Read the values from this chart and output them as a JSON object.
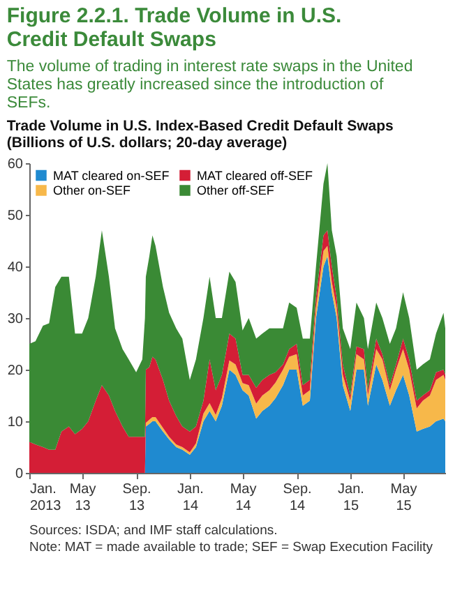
{
  "chart_data": {
    "type": "area",
    "stacked": true,
    "title": "Figure 2.2.1. Trade Volume in U.S. Credit Default Swaps",
    "subtitle": "The volume of trading in interest rate swaps in the United States has greatly increased since the introduction of SEFs.",
    "annotations": [
      "Trade Volume in U.S. Index-Based Credit Default Swaps",
      "Sources: ISDA; and IMF staff calculations.",
      "Note: MAT = made available to trade; SEF = Swap Execution Facility"
    ],
    "ylabel": "(Billions of U.S. dollars; 20-day average)",
    "x": [
      "2013-01-01",
      "2013-01-15",
      "2013-02-01",
      "2013-02-15",
      "2013-03-01",
      "2013-03-15",
      "2013-04-01",
      "2013-04-15",
      "2013-05-01",
      "2013-05-15",
      "2013-06-01",
      "2013-06-15",
      "2013-07-01",
      "2013-07-15",
      "2013-08-01",
      "2013-08-15",
      "2013-09-01",
      "2013-09-15",
      "2013-09-21",
      "2013-09-23",
      "2013-10-01",
      "2013-10-08",
      "2013-10-15",
      "2013-11-01",
      "2013-11-15",
      "2013-12-01",
      "2013-12-15",
      "2014-01-01",
      "2014-01-15",
      "2014-02-01",
      "2014-02-15",
      "2014-03-01",
      "2014-03-15",
      "2014-04-01",
      "2014-04-15",
      "2014-05-01",
      "2014-05-15",
      "2014-06-01",
      "2014-06-15",
      "2014-07-01",
      "2014-07-15",
      "2014-08-01",
      "2014-08-15",
      "2014-09-01",
      "2014-09-15",
      "2014-10-01",
      "2014-10-15",
      "2014-11-01",
      "2014-11-10",
      "2014-11-20",
      "2014-12-01",
      "2014-12-15",
      "2015-01-01",
      "2015-01-15",
      "2015-02-01",
      "2015-02-10",
      "2015-03-01",
      "2015-03-15",
      "2015-04-01",
      "2015-04-15",
      "2015-05-01",
      "2015-05-15",
      "2015-06-01",
      "2015-06-15",
      "2015-07-01",
      "2015-07-15",
      "2015-08-01",
      "2015-08-05"
    ],
    "series": [
      {
        "name": "MAT cleared on-SEF",
        "color": "#1f8ad0",
        "values": [
          0,
          0,
          0,
          0,
          0,
          0,
          0,
          0,
          0,
          0,
          0,
          0,
          0,
          0,
          0,
          0,
          0,
          0,
          0,
          9,
          9.5,
          10,
          10,
          8,
          6.5,
          5,
          4.5,
          3.5,
          5,
          10,
          12,
          10,
          13,
          20,
          19,
          16,
          15,
          10.5,
          12,
          13,
          14.5,
          17,
          20,
          20,
          13,
          14,
          30,
          40,
          42,
          35,
          30,
          17,
          12,
          20,
          20,
          13,
          21,
          18,
          13,
          16,
          19,
          15,
          8,
          8.5,
          9,
          10,
          10.5,
          10
        ]
      },
      {
        "name": "Other on-SEF",
        "color": "#f7b84a",
        "values": [
          0,
          0,
          0,
          0,
          0,
          0,
          0,
          0,
          0,
          0,
          0,
          0,
          0,
          0,
          0,
          0,
          0,
          0,
          0,
          0.7,
          0.8,
          0.8,
          0.8,
          0.7,
          0.5,
          0.5,
          0.5,
          0.5,
          0.7,
          1.5,
          1.5,
          1.2,
          1.5,
          1.8,
          2,
          1.4,
          2,
          2.9,
          3,
          3,
          3,
          3,
          2.5,
          3,
          2,
          2,
          2,
          3,
          2,
          2,
          2,
          2,
          2,
          3,
          2,
          2,
          3,
          4,
          3,
          4,
          5,
          5,
          4.5,
          5.5,
          6,
          8,
          8.5,
          8
        ]
      },
      {
        "name": "MAT cleared off-SEF",
        "color": "#d41e36",
        "values": [
          6,
          5.5,
          5,
          4.5,
          4.5,
          8,
          9,
          7.5,
          8.5,
          10,
          14,
          17,
          15,
          12,
          9,
          7,
          7,
          7,
          7,
          10.3,
          10.2,
          11.7,
          11.2,
          9.3,
          7,
          5.5,
          4,
          4,
          3.3,
          2.5,
          8.5,
          4.8,
          4.5,
          5.2,
          5,
          1.6,
          2,
          3.1,
          3,
          3,
          2,
          1,
          1.5,
          2,
          2,
          2,
          2,
          3,
          3,
          3,
          2,
          2,
          1,
          1.5,
          2,
          1,
          2,
          1,
          1,
          1,
          2,
          2,
          1.5,
          1,
          1,
          1.5,
          1,
          1
        ]
      },
      {
        "name": "Other off-SEF",
        "color": "#3a8a35",
        "values": [
          19,
          20,
          23.5,
          24.5,
          31.5,
          30,
          29,
          19.5,
          18.5,
          20,
          24,
          30,
          23,
          16,
          15,
          15,
          12.5,
          15,
          23,
          18,
          21.5,
          23.5,
          22,
          18,
          17,
          17,
          17,
          10,
          13,
          16,
          16,
          14,
          11,
          12,
          11,
          8.6,
          11,
          9.5,
          9,
          9,
          8.5,
          7,
          9,
          7,
          9,
          8,
          6,
          10,
          13,
          7,
          8,
          7,
          9,
          8.5,
          6,
          8,
          7,
          7,
          8,
          7,
          9,
          8,
          6,
          6,
          6,
          7.5,
          11,
          9
        ]
      }
    ],
    "xlim": [
      "2013-01-01",
      "2015-08-05"
    ],
    "xticks": [
      {
        "value": "2013-01-01",
        "label": "Jan. 2013"
      },
      {
        "value": "2013-05-01",
        "label": "May 13"
      },
      {
        "value": "2013-09-01",
        "label": "Sep. 13"
      },
      {
        "value": "2014-01-01",
        "label": "Jan. 14"
      },
      {
        "value": "2014-05-01",
        "label": "May 14"
      },
      {
        "value": "2014-09-01",
        "label": "Sep. 14"
      },
      {
        "value": "2015-01-01",
        "label": "Jan. 15"
      },
      {
        "value": "2015-05-01",
        "label": "May 15"
      }
    ],
    "ylim": [
      0,
      60
    ],
    "yticks": [
      0,
      10,
      20,
      30,
      40,
      50,
      60
    ],
    "grid": false,
    "legend": "top left"
  }
}
